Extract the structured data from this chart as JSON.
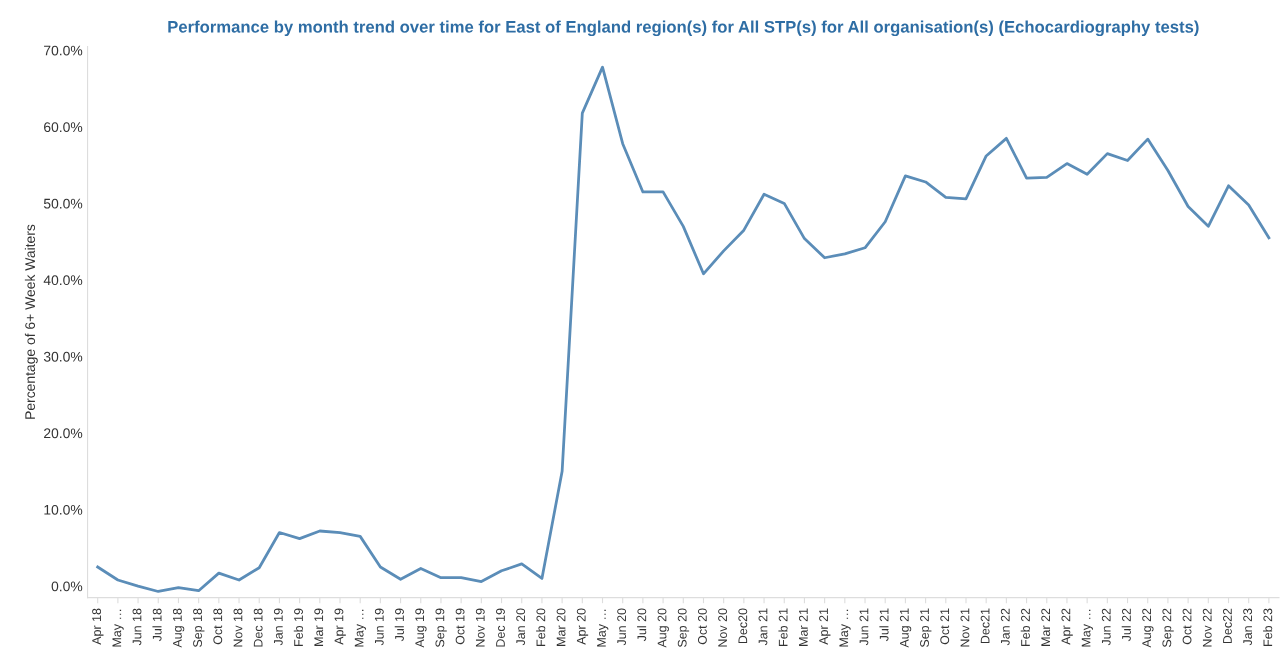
{
  "chart_data": {
    "type": "line",
    "title": "Performance by month trend over time for East of England region(s) for All STP(s) for All organisation(s) (Echocardiography tests)",
    "ylabel": "Percentage of 6+ Week Waiters",
    "categories": [
      "Apr 18",
      "May …",
      "Jun 18",
      "Jul 18",
      "Aug 18",
      "Sep 18",
      "Oct 18",
      "Nov 18",
      "Dec 18",
      "Jan 19",
      "Feb 19",
      "Mar 19",
      "Apr 19",
      "May …",
      "Jun 19",
      "Jul 19",
      "Aug 19",
      "Sep 19",
      "Oct 19",
      "Nov 19",
      "Dec 19",
      "Jan 20",
      "Feb 20",
      "Mar 20",
      "Apr 20",
      "May …",
      "Jun 20",
      "Jul 20",
      "Aug 20",
      "Sep 20",
      "Oct 20",
      "Nov 20",
      "Dec20",
      "Jan 21",
      "Feb 21",
      "Mar 21",
      "Apr 21",
      "May …",
      "Jun 21",
      "Jul 21",
      "Aug 21",
      "Sep 21",
      "Oct 21",
      "Nov 21",
      "Dec21",
      "Jan 22",
      "Feb 22",
      "Mar 22",
      "Apr 22",
      "May …",
      "Jun 22",
      "Jul 22",
      "Aug 22",
      "Sep 22",
      "Oct 22",
      "Nov 22",
      "Dec22",
      "Jan 23",
      "Feb 23"
    ],
    "series": [
      {
        "color": "#5b8db8",
        "values": [
          2.5,
          0.8,
          0,
          -0.7,
          -0.2,
          -0.6,
          1.7,
          0.8,
          2.4,
          7.0,
          6.2,
          7.2,
          7.0,
          6.5,
          2.5,
          0.9,
          2.3,
          1.1,
          1.1,
          0.6,
          2.0,
          2.9,
          1.0,
          15,
          61.8,
          67.8,
          57.8,
          51.5,
          51.5,
          47,
          40.8,
          43.8,
          46.5,
          51.2,
          50,
          45.4,
          42.9,
          43.4,
          44.2,
          47.6,
          53.6,
          52.8,
          50.8,
          50.6,
          56.2,
          58.5,
          53.3,
          53.4,
          55.2,
          53.8,
          56.5,
          55.6,
          58.4,
          54.3,
          49.6,
          47,
          52.3,
          49.8,
          45.5
        ]
      }
    ],
    "ylim": [
      -1.5,
      70.5
    ],
    "yticks": [
      {
        "value": 0,
        "label": "0.0%"
      },
      {
        "value": 10,
        "label": "10.0%"
      },
      {
        "value": 20,
        "label": "20.0%"
      },
      {
        "value": 30,
        "label": "30.0%"
      },
      {
        "value": 40,
        "label": "40.0%"
      },
      {
        "value": 50,
        "label": "50.0%"
      },
      {
        "value": 60,
        "label": "60.0%"
      },
      {
        "value": 70,
        "label": "70.0%"
      }
    ],
    "marker": "none",
    "line_style": "solid"
  }
}
